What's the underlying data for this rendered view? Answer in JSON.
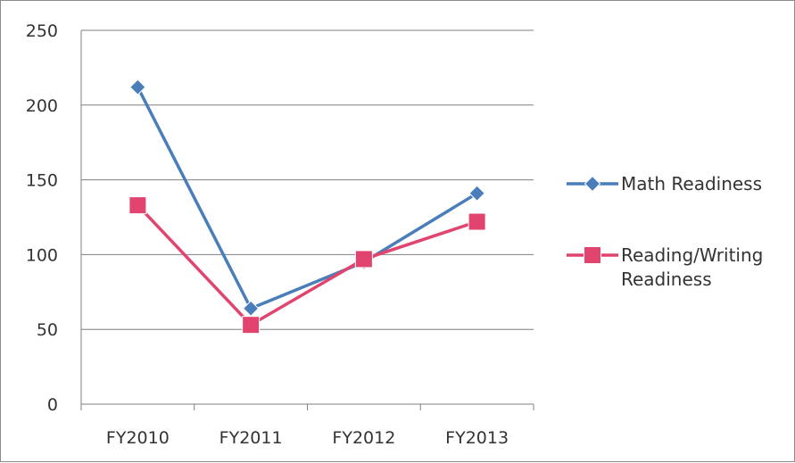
{
  "chart_data": {
    "type": "line",
    "title": "",
    "xlabel": "",
    "ylabel": "",
    "categories": [
      "FY2010",
      "FY2011",
      "FY2012",
      "FY2013"
    ],
    "ylim": [
      0,
      250
    ],
    "yticks": [
      "0",
      "50",
      "100",
      "150",
      "200",
      "250"
    ],
    "grid": "horizontal",
    "legend_position": "right",
    "series": [
      {
        "name": "Math Readiness",
        "name_lines": [
          "Math Readiness"
        ],
        "values": [
          212,
          64,
          95,
          141
        ],
        "color": "#4a7ebb",
        "marker": "diamond"
      },
      {
        "name": "Reading/Writing Readiness",
        "name_lines": [
          "Reading/Writing",
          "Readiness"
        ],
        "values": [
          133,
          53,
          97,
          122
        ],
        "color": "#e0446f",
        "marker": "square"
      }
    ]
  }
}
